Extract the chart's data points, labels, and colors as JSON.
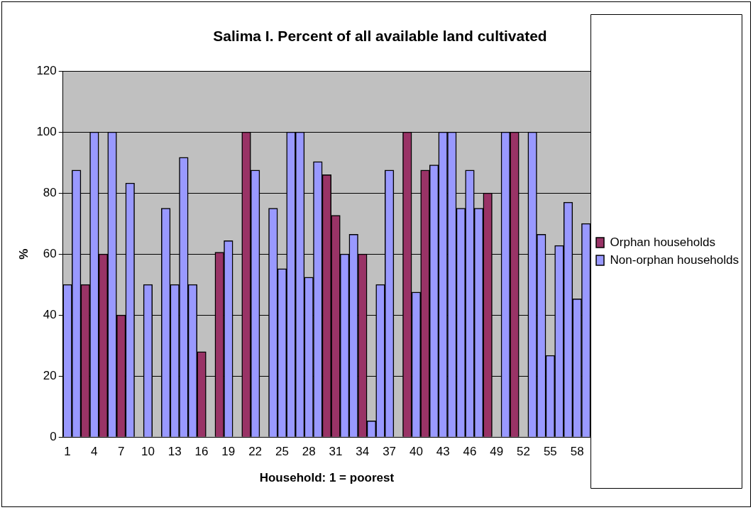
{
  "chart_data": {
    "type": "bar",
    "title": "Salima I. Percent of all available land cultivated",
    "xlabel": "Household: 1 = poorest",
    "ylabel": "%",
    "categories": [
      "1",
      null,
      null,
      "4",
      null,
      null,
      "7",
      null,
      null,
      "10",
      null,
      null,
      "13",
      null,
      null,
      "16",
      null,
      null,
      "19",
      null,
      null,
      "22",
      null,
      null,
      "25",
      null,
      null,
      "28",
      null,
      null,
      "31",
      null,
      null,
      "34",
      null,
      null,
      "37",
      null,
      null,
      "40",
      null,
      null,
      "43",
      null,
      null,
      "46",
      null,
      null,
      "49",
      null,
      null,
      "52",
      null,
      null,
      "55",
      null,
      null,
      "58",
      null
    ],
    "series": [
      {
        "name": "Orphan households",
        "color": "#993366",
        "values": [
          null,
          null,
          50,
          null,
          60,
          null,
          40,
          null,
          null,
          null,
          null,
          null,
          null,
          null,
          null,
          28,
          null,
          60.6,
          null,
          null,
          100,
          null,
          null,
          null,
          null,
          null,
          null,
          null,
          null,
          86,
          72.7,
          null,
          null,
          60,
          null,
          null,
          null,
          null,
          100,
          null,
          87.5,
          null,
          null,
          null,
          null,
          null,
          null,
          80,
          null,
          null,
          100,
          null,
          null,
          null,
          null,
          null,
          null,
          null,
          null
        ]
      },
      {
        "name": "Non-orphan households",
        "color": "#9999ff",
        "values": [
          50,
          87.5,
          null,
          100,
          null,
          100,
          null,
          83.3,
          null,
          50,
          null,
          75,
          50,
          91.7,
          50,
          null,
          null,
          null,
          64.4,
          null,
          null,
          87.5,
          null,
          75,
          55.2,
          100,
          100,
          52.4,
          90.3,
          null,
          null,
          60,
          66.5,
          null,
          5.3,
          50,
          87.5,
          null,
          null,
          47.5,
          null,
          89.2,
          100,
          100,
          75,
          87.5,
          75,
          null,
          null,
          100,
          null,
          null,
          100,
          66.5,
          26.8,
          62.8,
          77,
          45.3,
          70
        ]
      }
    ],
    "ylim": [
      0,
      120
    ],
    "yticks": [
      0,
      20,
      40,
      60,
      80,
      100,
      120
    ],
    "grid": "y",
    "legend": "right"
  }
}
